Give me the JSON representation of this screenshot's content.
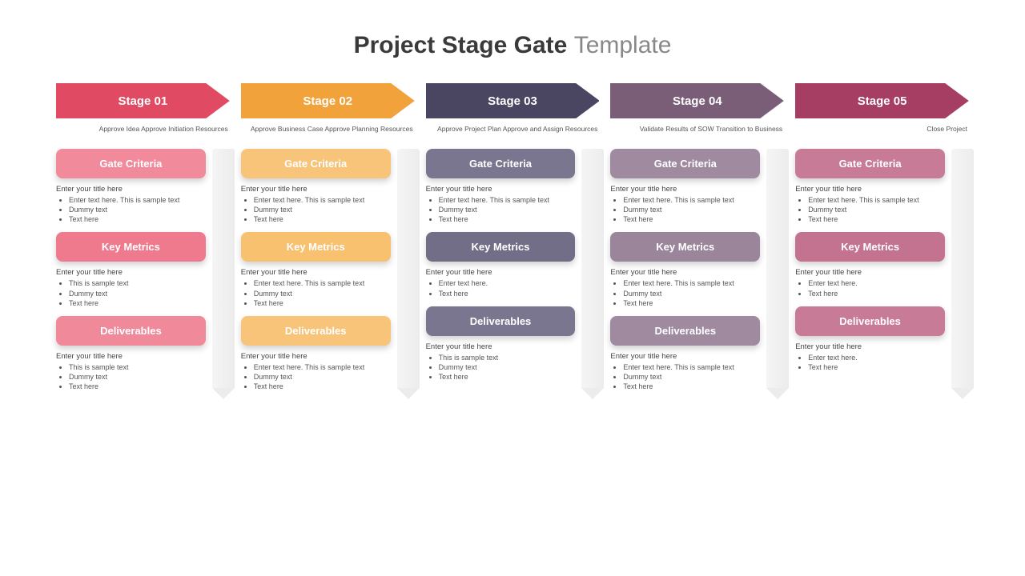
{
  "title_bold": "Project Stage Gate",
  "title_light": "Template",
  "background_color": "#ffffff",
  "title_color_bold": "#3a3a3a",
  "title_color_light": "#888888",
  "title_fontsize": 30,
  "pill_fontsize": 13,
  "body_fontsize": 9,
  "section_labels": {
    "gate_criteria": "Gate Criteria",
    "key_metrics": "Key Metrics",
    "deliverables": "Deliverables"
  },
  "stages": [
    {
      "label": "Stage 01",
      "arrow_color": "#e04b63",
      "pill_gate_color": "#f18a9a",
      "pill_metrics_color": "#ef7a8e",
      "pill_deliv_color": "#f08a9a",
      "gate_caption": "Approve Idea Approve Initiation Resources",
      "gate_criteria": {
        "title": "Enter your title here",
        "bullets": [
          "Enter text here. This is sample text",
          "Dummy text",
          "Text here"
        ]
      },
      "key_metrics": {
        "title": "Enter your title here",
        "bullets": [
          "This is sample text",
          "Dummy text",
          "Text here"
        ]
      },
      "deliverables": {
        "title": "Enter your title here",
        "bullets": [
          "This is sample text",
          "Dummy text",
          "Text here"
        ]
      }
    },
    {
      "label": "Stage 02",
      "arrow_color": "#f2a23a",
      "pill_gate_color": "#f7c479",
      "pill_metrics_color": "#f7c170",
      "pill_deliv_color": "#f7c479",
      "gate_caption": "Approve Business Case Approve Planning Resources",
      "gate_criteria": {
        "title": "Enter your title here",
        "bullets": [
          "Enter text here. This is sample text",
          "Dummy text",
          "Text here"
        ]
      },
      "key_metrics": {
        "title": "Enter your title here",
        "bullets": [
          "Enter text here. This is sample text",
          "Dummy text",
          "Text here"
        ]
      },
      "deliverables": {
        "title": "Enter your title here",
        "bullets": [
          "Enter text here. This is sample text",
          "Dummy text",
          "Text here"
        ]
      }
    },
    {
      "label": "Stage 03",
      "arrow_color": "#4a4662",
      "pill_gate_color": "#7b768f",
      "pill_metrics_color": "#736e88",
      "pill_deliv_color": "#7b768f",
      "gate_caption": "Approve Project Plan Approve and Assign Resources",
      "gate_criteria": {
        "title": "Enter your title here",
        "bullets": [
          "Enter text here. This is sample text",
          "Dummy text",
          "Text here"
        ]
      },
      "key_metrics": {
        "title": "Enter your title here",
        "bullets": [
          "Enter text here.",
          "Text here"
        ]
      },
      "deliverables": {
        "title": "Enter your title here",
        "bullets": [
          "This is sample text",
          "Dummy text",
          "Text here"
        ]
      }
    },
    {
      "label": "Stage 04",
      "arrow_color": "#7a5e77",
      "pill_gate_color": "#a08aa0",
      "pill_metrics_color": "#9b859b",
      "pill_deliv_color": "#a08aa0",
      "gate_caption": "Validate Results of SOW Transition to Business",
      "gate_criteria": {
        "title": "Enter your title here",
        "bullets": [
          "Enter text here. This is sample text",
          "Dummy text",
          "Text here"
        ]
      },
      "key_metrics": {
        "title": "Enter your title here",
        "bullets": [
          "Enter text here. This is sample text",
          "Dummy text",
          "Text here"
        ]
      },
      "deliverables": {
        "title": "Enter your title here",
        "bullets": [
          "Enter text here. This is sample text",
          "Dummy text",
          "Text here"
        ]
      }
    },
    {
      "label": "Stage 05",
      "arrow_color": "#a63d62",
      "pill_gate_color": "#c77b96",
      "pill_metrics_color": "#c37390",
      "pill_deliv_color": "#c77b96",
      "gate_caption": "Close Project",
      "gate_criteria": {
        "title": "Enter your title here",
        "bullets": [
          "Enter text here. This is sample text",
          "Dummy text",
          "Text here"
        ]
      },
      "key_metrics": {
        "title": "Enter your title here",
        "bullets": [
          "Enter text here.",
          "Text here"
        ]
      },
      "deliverables": {
        "title": "Enter your title here",
        "bullets": [
          "Enter text here.",
          "Text here"
        ]
      }
    }
  ]
}
